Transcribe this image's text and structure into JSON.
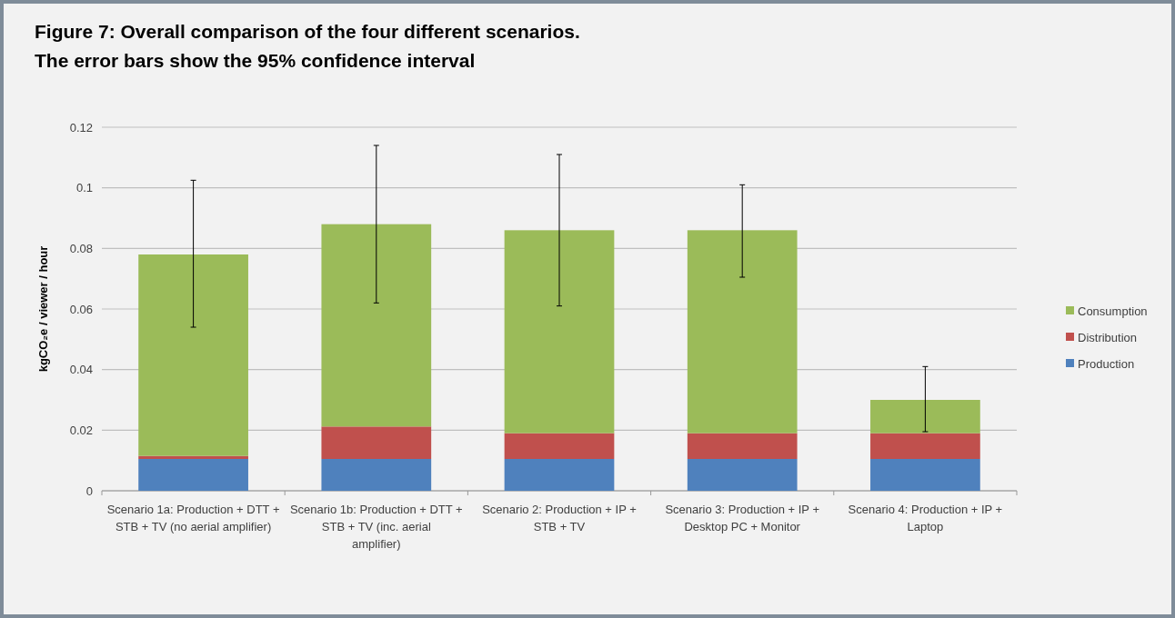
{
  "chart_data": {
    "type": "bar",
    "title": "Figure 7: Overall comparison of the four different scenarios.",
    "subtitle": "The error bars show the 95% confidence interval",
    "ylabel": "kgCO₂e / viewer / hour",
    "categories": [
      "Scenario 1a: Production + DTT + STB + TV (no aerial amplifier)",
      "Scenario 1b: Production + DTT + STB + TV (inc. aerial amplifier)",
      "Scenario 2: Production + IP + STB + TV",
      "Scenario 3: Production + IP + Desktop PC + Monitor",
      "Scenario 4: Production + IP + Laptop"
    ],
    "stacked": true,
    "series": [
      {
        "name": "Production",
        "color": "#4f81bd",
        "values": [
          0.0105,
          0.0105,
          0.0105,
          0.0105,
          0.0105
        ]
      },
      {
        "name": "Distribution",
        "color": "#c0504d",
        "values": [
          0.001,
          0.0107,
          0.0085,
          0.0085,
          0.0085
        ]
      },
      {
        "name": "Consumption",
        "color": "#9bbb59",
        "values": [
          0.0665,
          0.0668,
          0.067,
          0.067,
          0.011
        ],
        "errors": [
          [
            0.054,
            0.1025
          ],
          [
            0.062,
            0.114
          ],
          [
            0.061,
            0.111
          ],
          [
            0.0705,
            0.101
          ],
          [
            0.0195,
            0.041
          ]
        ]
      }
    ],
    "ylim": [
      0,
      0.12
    ],
    "yticks": [
      0,
      0.02,
      0.04,
      0.06,
      0.08,
      0.1,
      0.12
    ],
    "grid": "y",
    "legend": "right"
  }
}
